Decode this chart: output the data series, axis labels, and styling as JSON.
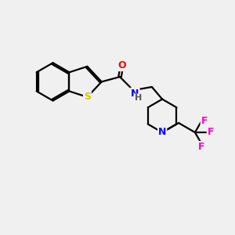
{
  "bg_color": "#f0f0f0",
  "bond_color": "#000000",
  "S_color": "#cccc00",
  "N_color": "#0000ff",
  "O_color": "#ff0000",
  "F_color": "#ff00cc",
  "line_width": 1.6,
  "figsize": [
    3.0,
    3.0
  ],
  "dpi": 100,
  "xlim": [
    0,
    10
  ],
  "ylim": [
    0,
    10
  ]
}
